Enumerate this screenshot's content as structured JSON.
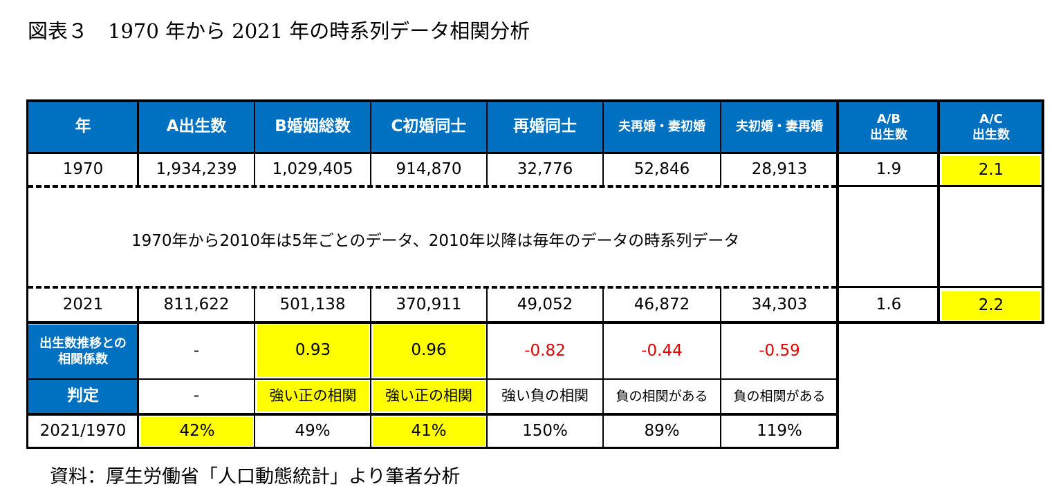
{
  "title": "図表３　1970 年から 2021 年の時系列データ相関分析",
  "source": "資料：厚生労働省「人口動態統計」より筆者分析",
  "colors": {
    "header_bg": "#0070c0",
    "highlight": "#ffff00",
    "negative": "#e00000"
  },
  "headers": {
    "year": "年",
    "a": "A出生数",
    "b": "B婚姻総数",
    "c": "C初婚同士",
    "d": "再婚同士",
    "e": "夫再婚・妻初婚",
    "f": "夫初婚・妻再婚",
    "ab_1": "A/B",
    "ab_2": "出生数",
    "ac_1": "A/C",
    "ac_2": "出生数"
  },
  "row1970": [
    "1970",
    "1,934,239",
    "1,029,405",
    "914,870",
    "32,776",
    "52,846",
    "28,913",
    "1.9",
    "2.1"
  ],
  "note": "1970年から2010年は5年ごとのデータ、2010年以降は毎年のデータの時系列データ",
  "row2021": [
    "2021",
    "811,622",
    "501,138",
    "370,911",
    "49,052",
    "46,872",
    "34,303",
    "1.6",
    "2.2"
  ],
  "correlation": {
    "label_1": "出生数推移との",
    "label_2": "相関係数",
    "values": [
      "-",
      "0.93",
      "0.96",
      "-0.82",
      "-0.44",
      "-0.59"
    ]
  },
  "judgement": {
    "label": "判定",
    "values": [
      "-",
      "強い正の相関",
      "強い正の相関",
      "強い負の相関",
      "負の相関がある",
      "負の相関がある"
    ]
  },
  "ratio": {
    "label": "2021/1970",
    "values": [
      "42%",
      "49%",
      "41%",
      "150%",
      "89%",
      "119%"
    ]
  }
}
